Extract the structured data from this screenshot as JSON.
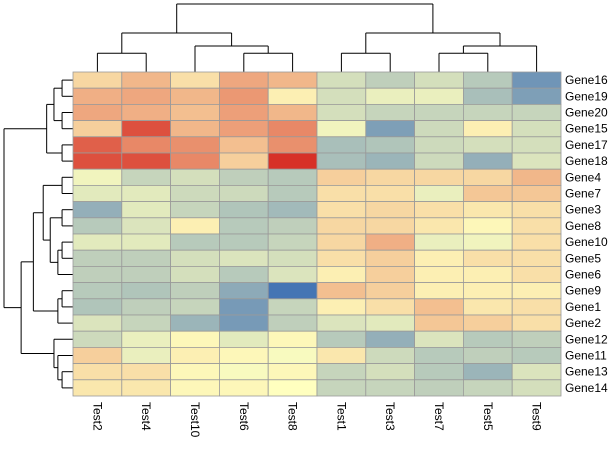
{
  "chart_data": {
    "type": "heatmap",
    "title": "",
    "columns": [
      "Test2",
      "Test4",
      "Test10",
      "Test6",
      "Test8",
      "Test1",
      "Test3",
      "Test7",
      "Test5",
      "Test9"
    ],
    "rows": [
      "Gene16",
      "Gene19",
      "Gene20",
      "Gene15",
      "Gene17",
      "Gene18",
      "Gene4",
      "Gene7",
      "Gene3",
      "Gene8",
      "Gene10",
      "Gene5",
      "Gene6",
      "Gene9",
      "Gene1",
      "Gene2",
      "Gene12",
      "Gene11",
      "Gene13",
      "Gene14"
    ],
    "values": [
      [
        0.5,
        0.9,
        0.4,
        1.1,
        0.9,
        -0.6,
        -0.9,
        -0.6,
        -1.0,
        -2.0
      ],
      [
        1.0,
        1.1,
        0.9,
        1.3,
        0.2,
        -0.6,
        -0.3,
        -0.3,
        -1.2,
        -1.8
      ],
      [
        1.1,
        1.0,
        0.8,
        1.2,
        0.9,
        -0.6,
        -0.8,
        -0.8,
        -0.8,
        -0.8
      ],
      [
        0.6,
        2.2,
        0.9,
        1.2,
        1.5,
        -0.2,
        -1.8,
        -0.7,
        0.2,
        -0.6
      ],
      [
        2.0,
        1.5,
        1.4,
        0.8,
        1.4,
        -1.2,
        -1.1,
        -0.7,
        -0.6,
        -0.6
      ],
      [
        2.2,
        2.2,
        1.5,
        0.6,
        2.6,
        -1.2,
        -1.4,
        -0.7,
        -1.5,
        -0.5
      ],
      [
        -0.2,
        -0.8,
        -0.6,
        -0.9,
        -1.0,
        0.6,
        0.5,
        0.5,
        0.5,
        0.9
      ],
      [
        -0.4,
        -0.4,
        -0.7,
        -0.7,
        -1.0,
        0.4,
        0.4,
        -0.3,
        0.7,
        0.7
      ],
      [
        -1.5,
        -0.4,
        -0.8,
        -1.1,
        -1.3,
        0.4,
        0.5,
        0.4,
        0.3,
        0.4
      ],
      [
        -1.0,
        -0.5,
        0.2,
        -1.0,
        -0.9,
        0.5,
        0.5,
        0.3,
        0.1,
        0.4
      ],
      [
        -0.4,
        -0.4,
        -1.0,
        -1.0,
        -0.8,
        0.5,
        1.0,
        -0.3,
        -0.2,
        0.4
      ],
      [
        -0.9,
        -0.9,
        -0.6,
        -0.5,
        -0.6,
        0.4,
        0.6,
        0.2,
        0.4,
        0.4
      ],
      [
        -0.9,
        -0.9,
        -0.6,
        -1.0,
        -0.5,
        0.2,
        0.6,
        0.2,
        0.2,
        0.4
      ],
      [
        -1.0,
        -1.1,
        -0.9,
        -1.6,
        -2.6,
        0.8,
        0.6,
        0.2,
        0.2,
        0.2
      ],
      [
        -1.1,
        -0.9,
        -0.8,
        -1.9,
        -0.8,
        0.2,
        0.4,
        0.8,
        0.3,
        0.4
      ],
      [
        -0.5,
        -0.8,
        -1.4,
        -1.9,
        -0.9,
        -0.5,
        -0.4,
        0.7,
        0.6,
        0.4
      ],
      [
        -0.7,
        -0.3,
        0.1,
        -0.4,
        0.1,
        -1.0,
        -1.5,
        -0.5,
        -1.0,
        -0.9
      ],
      [
        0.6,
        -0.3,
        0.2,
        0.1,
        -0.1,
        0.3,
        -0.7,
        -1.0,
        -0.9,
        -1.0
      ],
      [
        0.4,
        0.4,
        0.1,
        -0.1,
        0.1,
        -0.8,
        -0.6,
        -1.0,
        -1.4,
        -0.5
      ],
      [
        0.3,
        0.3,
        0.1,
        0.1,
        0.0,
        -0.8,
        -0.8,
        -0.9,
        -0.8,
        -0.6
      ]
    ],
    "color_scale": {
      "low": "#4575b4",
      "mid": "#ffffbf",
      "high": "#d73027",
      "range": [
        -2.6,
        2.6
      ]
    },
    "column_order_tree": [
      [
        [
          "Test2",
          "Test4"
        ],
        [
          "Test10",
          [
            "Test6",
            "Test8"
          ]
        ]
      ],
      [
        [
          "Test1",
          "Test3"
        ],
        [
          [
            "Test7",
            "Test5"
          ],
          "Test9"
        ]
      ]
    ],
    "row_order_tree": [
      [
        [
          [
            "Gene16",
            "Gene19"
          ],
          [
            "Gene20",
            "Gene15"
          ]
        ],
        [
          "Gene17",
          "Gene18"
        ]
      ],
      [
        [
          [
            [
              "Gene4",
              "Gene7"
            ],
            [
              [
                "Gene3",
                "Gene8"
              ],
              [
                [
                  "Gene10",
                  "Gene5"
                ],
                "Gene6"
              ]
            ]
          ],
          [
            [
              "Gene9",
              "Gene1"
            ],
            "Gene2"
          ]
        ],
        [
          "Gene12",
          [
            "Gene11",
            [
              "Gene13",
              "Gene14"
            ]
          ]
        ]
      ]
    ]
  }
}
